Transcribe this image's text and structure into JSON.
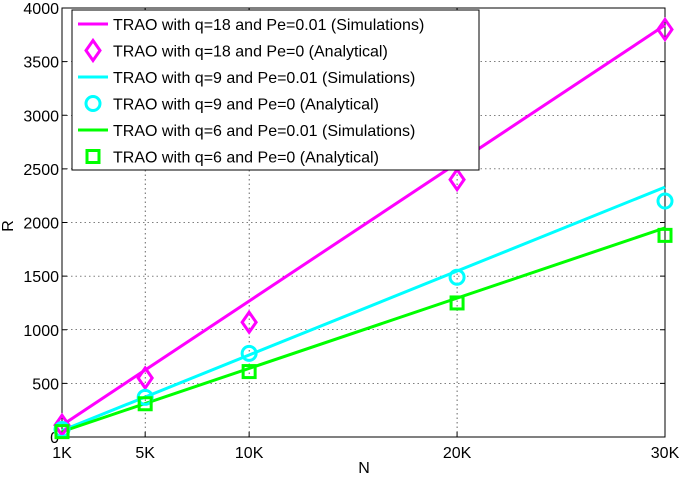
{
  "chart_data": {
    "type": "line",
    "title": "",
    "xlabel": "N",
    "ylabel": "R",
    "x": [
      1000,
      5000,
      10000,
      20000,
      30000
    ],
    "xticks": [
      {
        "value": 1000,
        "label": "1K"
      },
      {
        "value": 5000,
        "label": "5K"
      },
      {
        "value": 10000,
        "label": "10K"
      },
      {
        "value": 20000,
        "label": "20K"
      },
      {
        "value": 30000,
        "label": "30K"
      }
    ],
    "xlim": [
      1000,
      30000
    ],
    "ylim": [
      0,
      4000
    ],
    "yticks": [
      0,
      500,
      1000,
      1500,
      2000,
      2500,
      3000,
      3500,
      4000
    ],
    "yticklabels": [
      "0",
      "500",
      "1000",
      "1500",
      "2000",
      "2500",
      "3000",
      "3500",
      "4000"
    ],
    "grid": true,
    "legend_position": "top-left",
    "series": [
      {
        "name": "TRAO with q=18 and Pe=0.01 (Simulations)",
        "style": "line",
        "color": "#ff00ff",
        "x": [
          1000,
          30000
        ],
        "values": [
          110,
          3840
        ]
      },
      {
        "name": "TRAO with q=18 and Pe=0 (Analytical)",
        "style": "marker",
        "marker": "diamond",
        "color": "#ff00ff",
        "x": [
          1000,
          5000,
          10000,
          20000,
          30000
        ],
        "values": [
          110,
          550,
          1070,
          2400,
          3800
        ]
      },
      {
        "name": "TRAO with q=9 and Pe=0.01 (Simulations)",
        "style": "line",
        "color": "#00ffff",
        "x": [
          1000,
          30000
        ],
        "values": [
          60,
          2330
        ]
      },
      {
        "name": "TRAO with q=9 and Pe=0 (Analytical)",
        "style": "marker",
        "marker": "circle",
        "color": "#00ffff",
        "x": [
          1000,
          5000,
          10000,
          20000,
          30000
        ],
        "values": [
          70,
          370,
          780,
          1490,
          2200
        ]
      },
      {
        "name": "TRAO with q=6 and Pe=0.01 (Simulations)",
        "style": "line",
        "color": "#00ff00",
        "x": [
          1000,
          30000
        ],
        "values": [
          50,
          1950
        ]
      },
      {
        "name": "TRAO with q=6 and Pe=0 (Analytical)",
        "style": "marker",
        "marker": "square",
        "color": "#00ff00",
        "x": [
          1000,
          5000,
          10000,
          20000,
          30000
        ],
        "values": [
          50,
          310,
          610,
          1250,
          1880
        ]
      }
    ]
  }
}
